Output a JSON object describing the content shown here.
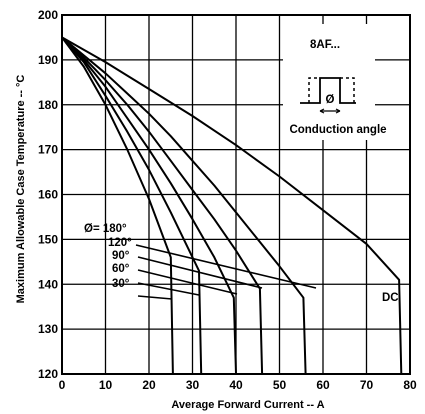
{
  "chart_data": {
    "type": "line",
    "title": "",
    "xlabel": "Average Forward Current -- A",
    "ylabel": "Maximum Allowable Case Temperature -- °C",
    "xlim": [
      0,
      80
    ],
    "ylim": [
      120,
      200
    ],
    "xticks": [
      0,
      10,
      20,
      30,
      40,
      50,
      60,
      70,
      80
    ],
    "yticks": [
      120,
      130,
      140,
      150,
      160,
      170,
      180,
      190,
      200
    ],
    "grid": true,
    "series": [
      {
        "name": "30°",
        "x": [
          0,
          5,
          10,
          15,
          20,
          25,
          25.5
        ],
        "y": [
          195,
          188.5,
          180,
          170,
          159,
          146,
          120
        ]
      },
      {
        "name": "60°",
        "x": [
          0,
          5,
          10,
          15,
          20,
          25,
          31.5,
          32
        ],
        "y": [
          195,
          189.5,
          182,
          174,
          165.5,
          156,
          143,
          120
        ]
      },
      {
        "name": "90°",
        "x": [
          0,
          5,
          10,
          15,
          20,
          25,
          30,
          35,
          39.5,
          40
        ],
        "y": [
          195,
          190,
          184,
          177,
          170,
          162.5,
          154.5,
          146,
          137,
          120
        ]
      },
      {
        "name": "120°",
        "x": [
          0,
          5,
          10,
          15,
          20,
          25,
          30,
          35,
          40,
          45.5,
          46
        ],
        "y": [
          195,
          190.5,
          185.5,
          180,
          174,
          167.5,
          161,
          154.5,
          147.5,
          139,
          120
        ]
      },
      {
        "name": "180°",
        "x": [
          0,
          5,
          10,
          15,
          20,
          25,
          30,
          35,
          40,
          45,
          50,
          55.5,
          56
        ],
        "y": [
          195,
          191,
          187,
          182.5,
          178,
          173,
          167.5,
          162,
          156,
          150,
          144,
          137,
          120
        ]
      },
      {
        "name": "DC",
        "x": [
          0,
          10,
          20,
          30,
          40,
          50,
          60,
          70,
          77.5,
          78
        ],
        "y": [
          195,
          189.5,
          183.5,
          177.5,
          171,
          164,
          156.5,
          149,
          141,
          120
        ]
      }
    ],
    "annotations": {
      "label_180": "Ø= 180°",
      "label_120": "120°",
      "label_90": "90°",
      "label_60": "60°",
      "label_30": "30°",
      "label_dc": "DC",
      "part": "8AF...",
      "phi": "Ø",
      "conduction": "Conduction angle"
    }
  }
}
